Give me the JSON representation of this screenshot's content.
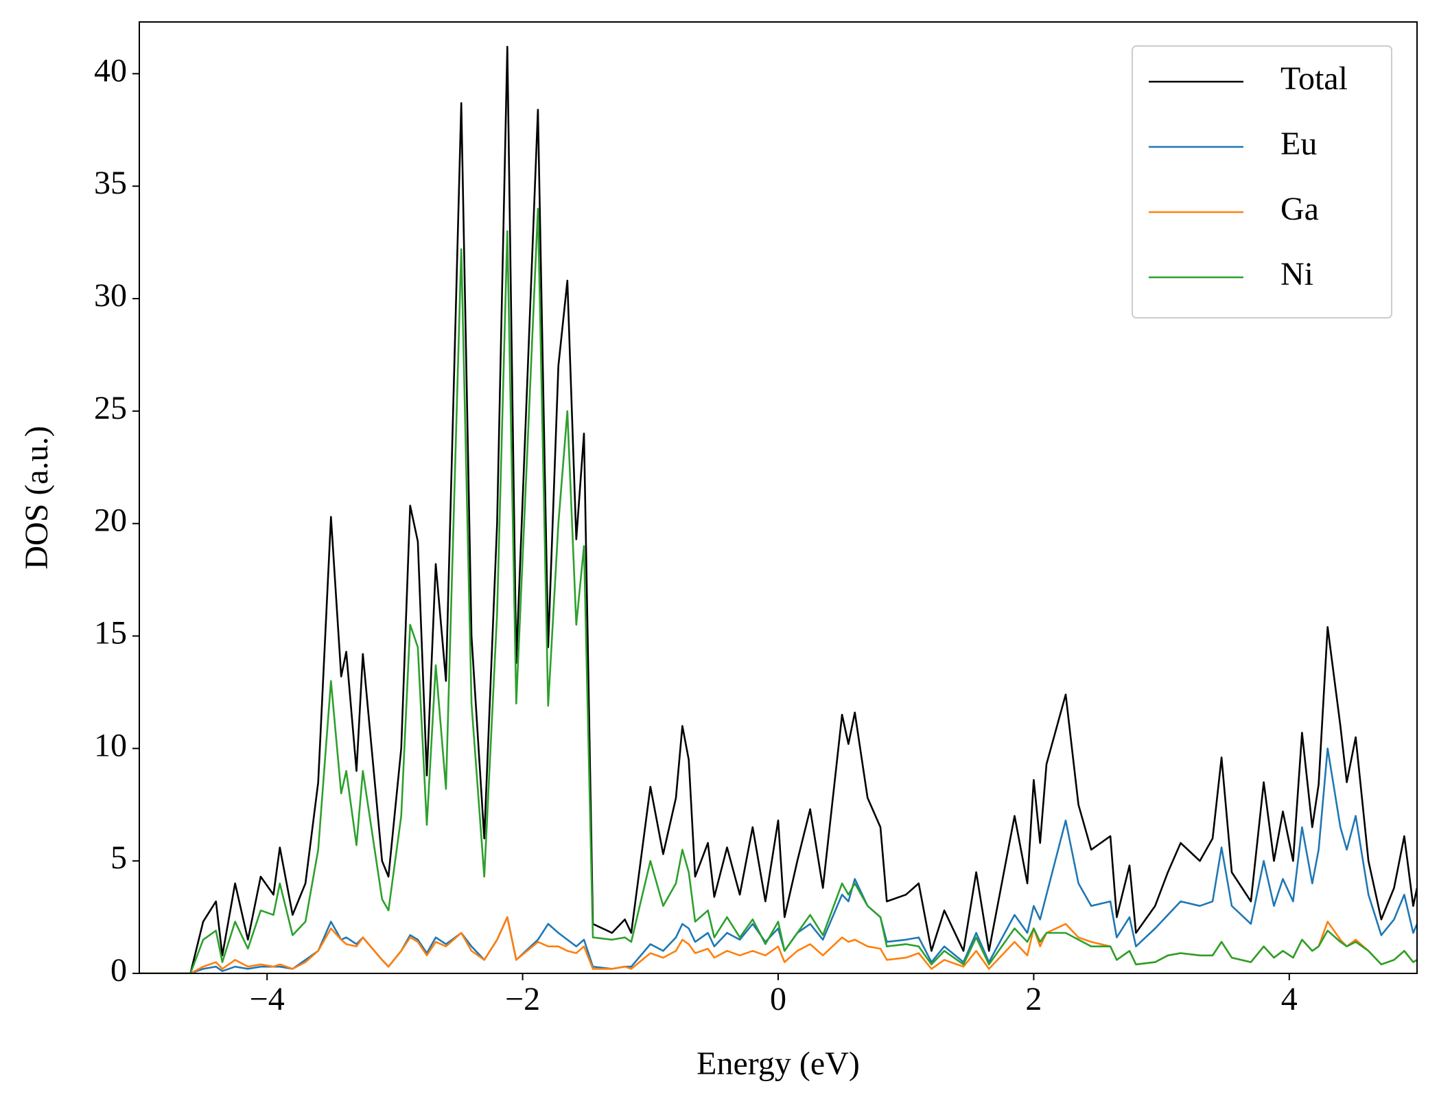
{
  "chart_data": {
    "type": "line",
    "xlabel": "Energy (eV)",
    "ylabel": "DOS (a.u.)",
    "xlim": [
      -5,
      5
    ],
    "ylim": [
      0,
      42.3
    ],
    "xticks": [
      {
        "value": -4,
        "label": "−4"
      },
      {
        "value": -2,
        "label": "−2"
      },
      0,
      2,
      4
    ],
    "yticks": [
      0,
      5,
      10,
      15,
      20,
      25,
      30,
      35,
      40
    ],
    "legend": "upper right",
    "x": [
      -5,
      -4.6,
      -4.5,
      -4.4,
      -4.35,
      -4.25,
      -4.15,
      -4.05,
      -3.95,
      -3.9,
      -3.8,
      -3.7,
      -3.6,
      -3.5,
      -3.42,
      -3.38,
      -3.3,
      -3.25,
      -3.1,
      -3.05,
      -2.95,
      -2.88,
      -2.82,
      -2.75,
      -2.68,
      -2.6,
      -2.48,
      -2.4,
      -2.3,
      -2.2,
      -2.12,
      -2.05,
      -1.88,
      -1.8,
      -1.72,
      -1.65,
      -1.58,
      -1.52,
      -1.45,
      -1.3,
      -1.2,
      -1.15,
      -1.0,
      -0.9,
      -0.8,
      -0.75,
      -0.7,
      -0.65,
      -0.55,
      -0.5,
      -0.4,
      -0.3,
      -0.2,
      -0.1,
      0,
      0.05,
      0.15,
      0.25,
      0.35,
      0.5,
      0.55,
      0.6,
      0.7,
      0.8,
      0.85,
      1.0,
      1.1,
      1.2,
      1.3,
      1.45,
      1.55,
      1.65,
      1.85,
      1.95,
      2.0,
      2.05,
      2.1,
      2.25,
      2.35,
      2.45,
      2.6,
      2.65,
      2.75,
      2.8,
      2.95,
      3.05,
      3.15,
      3.3,
      3.4,
      3.47,
      3.55,
      3.7,
      3.8,
      3.88,
      3.95,
      4.03,
      4.1,
      4.18,
      4.23,
      4.3,
      4.4,
      4.45,
      4.52,
      4.62,
      4.72,
      4.82,
      4.9,
      4.97,
      5.0
    ],
    "series": [
      {
        "name": "Total",
        "color": "#000000",
        "values": [
          0,
          0,
          2.3,
          3.2,
          0.8,
          4.0,
          1.5,
          4.3,
          3.5,
          5.6,
          2.6,
          4.0,
          8.5,
          20.3,
          13.2,
          14.3,
          9.0,
          14.2,
          5.0,
          4.3,
          10.0,
          20.8,
          19.2,
          8.8,
          18.2,
          13.0,
          38.7,
          15.0,
          6.0,
          20.0,
          41.2,
          13.8,
          38.4,
          14.5,
          27.0,
          30.8,
          19.3,
          24.0,
          2.2,
          1.8,
          2.4,
          1.8,
          8.3,
          5.3,
          7.8,
          11.0,
          9.5,
          4.3,
          5.8,
          3.4,
          5.6,
          3.5,
          6.5,
          3.2,
          6.8,
          2.5,
          5.0,
          7.3,
          3.8,
          11.5,
          10.2,
          11.6,
          7.8,
          6.5,
          3.2,
          3.5,
          4.0,
          1.0,
          2.8,
          1.0,
          4.5,
          1.0,
          7.0,
          4.0,
          8.6,
          5.8,
          9.3,
          12.4,
          7.5,
          5.5,
          6.1,
          2.5,
          4.8,
          1.8,
          3.0,
          4.5,
          5.8,
          5.0,
          6.0,
          9.6,
          4.5,
          3.2,
          8.5,
          5.0,
          7.2,
          5.0,
          10.7,
          6.5,
          8.4,
          15.4,
          11.0,
          8.5,
          10.5,
          5.0,
          2.4,
          3.8,
          6.1,
          3.0,
          3.8
        ]
      },
      {
        "name": "Eu",
        "color": "#1f77b4",
        "values": [
          0,
          0,
          0.2,
          0.3,
          0.1,
          0.3,
          0.2,
          0.3,
          0.3,
          0.3,
          0.2,
          0.6,
          1.0,
          2.3,
          1.5,
          1.6,
          1.3,
          1.6,
          0.6,
          0.3,
          1.0,
          1.7,
          1.5,
          0.9,
          1.6,
          1.3,
          1.8,
          1.2,
          0.6,
          1.5,
          2.5,
          0.6,
          1.5,
          2.2,
          1.8,
          1.5,
          1.2,
          1.5,
          0.3,
          0.2,
          0.3,
          0.3,
          1.3,
          1.0,
          1.6,
          2.2,
          2.0,
          1.4,
          1.8,
          1.2,
          1.8,
          1.5,
          2.2,
          1.4,
          2.0,
          1.0,
          1.8,
          2.2,
          1.5,
          3.5,
          3.2,
          4.2,
          3.0,
          2.5,
          1.4,
          1.5,
          1.6,
          0.5,
          1.2,
          0.5,
          1.8,
          0.5,
          2.6,
          1.8,
          3.0,
          2.4,
          3.5,
          6.8,
          4.0,
          3.0,
          3.2,
          1.6,
          2.5,
          1.2,
          2.0,
          2.6,
          3.2,
          3.0,
          3.2,
          5.6,
          3.0,
          2.2,
          5.0,
          3.0,
          4.2,
          3.2,
          6.5,
          4.0,
          5.5,
          10.0,
          6.5,
          5.5,
          7.0,
          3.5,
          1.7,
          2.4,
          3.5,
          1.8,
          2.2
        ]
      },
      {
        "name": "Ga",
        "color": "#ff7f0e",
        "values": [
          0,
          0,
          0.3,
          0.5,
          0.2,
          0.6,
          0.3,
          0.4,
          0.3,
          0.4,
          0.2,
          0.5,
          1.0,
          2.0,
          1.5,
          1.3,
          1.2,
          1.6,
          0.6,
          0.3,
          1.0,
          1.6,
          1.4,
          0.8,
          1.4,
          1.2,
          1.8,
          1.0,
          0.6,
          1.5,
          2.5,
          0.6,
          1.4,
          1.2,
          1.2,
          1.0,
          0.9,
          1.2,
          0.2,
          0.2,
          0.3,
          0.2,
          0.9,
          0.7,
          1.0,
          1.5,
          1.3,
          0.9,
          1.1,
          0.7,
          1.0,
          0.8,
          1.0,
          0.8,
          1.2,
          0.5,
          1.0,
          1.3,
          0.8,
          1.6,
          1.4,
          1.5,
          1.2,
          1.1,
          0.6,
          0.7,
          0.9,
          0.2,
          0.6,
          0.3,
          1.0,
          0.2,
          1.4,
          0.8,
          2.0,
          1.2,
          1.8,
          2.2,
          1.6,
          1.4,
          1.2,
          0.6,
          1.0,
          0.4,
          0.5,
          0.8,
          0.9,
          0.8,
          0.8,
          1.4,
          0.7,
          0.5,
          1.2,
          0.7,
          1.0,
          0.7,
          1.5,
          1.0,
          1.2,
          2.3,
          1.5,
          1.2,
          1.5,
          1.0,
          0.4,
          0.6,
          1.0,
          0.5,
          0.6
        ]
      },
      {
        "name": "Ni",
        "color": "#2ca02c",
        "values": [
          0,
          0,
          1.5,
          1.9,
          0.5,
          2.3,
          1.1,
          2.8,
          2.6,
          4.0,
          1.7,
          2.3,
          5.5,
          13.0,
          8.0,
          9.0,
          5.7,
          9.0,
          3.3,
          2.8,
          7.0,
          15.5,
          14.5,
          6.6,
          13.7,
          8.2,
          32.2,
          12.0,
          4.3,
          16.0,
          33.0,
          12.0,
          34.0,
          11.9,
          20.0,
          25.0,
          15.5,
          19.0,
          1.6,
          1.5,
          1.6,
          1.4,
          5.0,
          3.0,
          4.0,
          5.5,
          4.5,
          2.3,
          2.8,
          1.6,
          2.5,
          1.6,
          2.4,
          1.3,
          2.3,
          1.0,
          1.8,
          2.6,
          1.7,
          4.0,
          3.5,
          4.0,
          3.0,
          2.5,
          1.2,
          1.3,
          1.2,
          0.4,
          1.0,
          0.4,
          1.6,
          0.4,
          2.0,
          1.4,
          2.0,
          1.4,
          1.8,
          1.8,
          1.5,
          1.2,
          1.2,
          0.6,
          1.0,
          0.4,
          0.5,
          0.8,
          0.9,
          0.8,
          0.8,
          1.4,
          0.7,
          0.5,
          1.2,
          0.7,
          1.0,
          0.7,
          1.5,
          1.0,
          1.2,
          1.9,
          1.4,
          1.2,
          1.4,
          1.0,
          0.4,
          0.6,
          1.0,
          0.5,
          0.6
        ]
      }
    ]
  }
}
